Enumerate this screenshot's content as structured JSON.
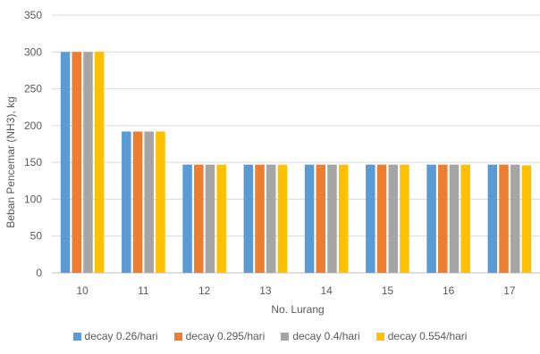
{
  "chart_data": {
    "type": "bar",
    "title": "",
    "xlabel": "No. Lurang",
    "ylabel": "Beban Pencemar (NH3), kg",
    "ylim": [
      0,
      350
    ],
    "yticks": [
      0,
      50,
      100,
      150,
      200,
      250,
      300,
      350
    ],
    "grid": true,
    "legend_position": "bottom",
    "categories": [
      "10",
      "11",
      "12",
      "13",
      "14",
      "15",
      "16",
      "17"
    ],
    "series": [
      {
        "name": "decay 0.26/hari",
        "color": "#5B9BD5",
        "values": [
          300,
          192,
          147,
          147,
          147,
          147,
          147,
          147
        ]
      },
      {
        "name": "decay 0.295/hari",
        "color": "#ED7D31",
        "values": [
          300,
          192,
          147,
          147,
          147,
          147,
          147,
          147
        ]
      },
      {
        "name": "decay 0.4/hari",
        "color": "#A5A5A5",
        "values": [
          300,
          192,
          147,
          147,
          147,
          147,
          147,
          147
        ]
      },
      {
        "name": "decay 0.554/hari",
        "color": "#FFC000",
        "values": [
          300,
          192,
          147,
          147,
          147,
          147,
          147,
          146
        ]
      }
    ]
  }
}
